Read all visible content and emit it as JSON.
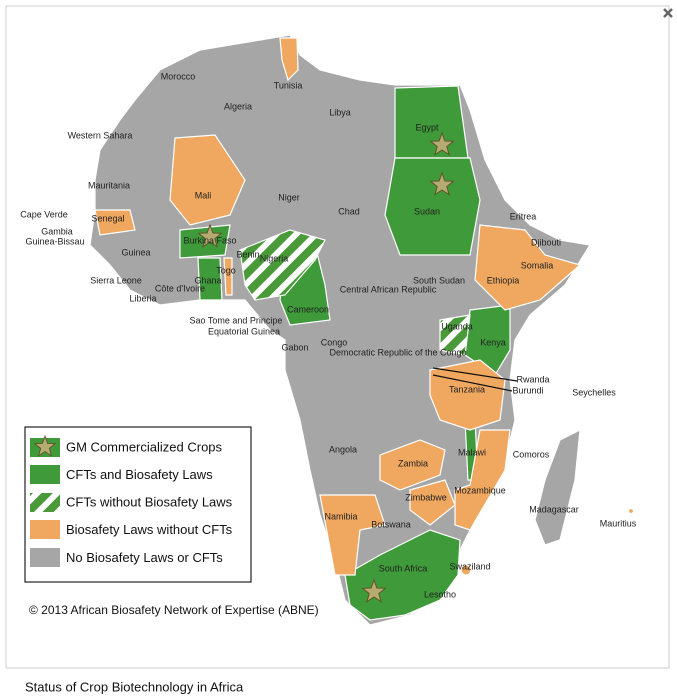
{
  "map": {
    "labels": [
      "Morocco",
      "Tunisia",
      "Algeria",
      "Libya",
      "Egypt",
      "Western Sahara",
      "Mauritania",
      "Mali",
      "Niger",
      "Chad",
      "Sudan",
      "Eritrea",
      "Cape Verde",
      "Senegal",
      "Gambia",
      "Guinea-Bissau",
      "Burkina Faso",
      "Djibouti",
      "Nigeria",
      "Benin",
      "Guinea",
      "South Sudan",
      "Somalia",
      "Sierra Leone",
      "Togo",
      "Ethiopia",
      "Ghana",
      "Liberia",
      "Côte d'Ivoire",
      "Central African Republic",
      "Cameroon",
      "Uganda",
      "Sao Tome and Principe",
      "Equatorial Guinea",
      "Gabon",
      "Congo",
      "Democratic Republic of the Congo",
      "Kenya",
      "Rwanda",
      "Burundi",
      "Seychelles",
      "Tanzania",
      "Angola",
      "Comoros",
      "Zambia",
      "Malawi",
      "Mozambique",
      "Zimbabwe",
      "Madagascar",
      "Mauritius",
      "Namibia",
      "Botswana",
      "Swaziland",
      "South Africa",
      "Lesotho"
    ]
  },
  "legend": {
    "items": [
      "GM Commercialized Crops",
      "CFTs and Biosafety Laws",
      "CFTs without Biosafety Laws",
      "Biosafety Laws without CFTs",
      "No Biosafety Laws or CFTs"
    ]
  },
  "copyright": "© 2013 African Biosafety Network of Expertise (ABNE)",
  "caption": "Status of Crop Biotechnology in Africa"
}
